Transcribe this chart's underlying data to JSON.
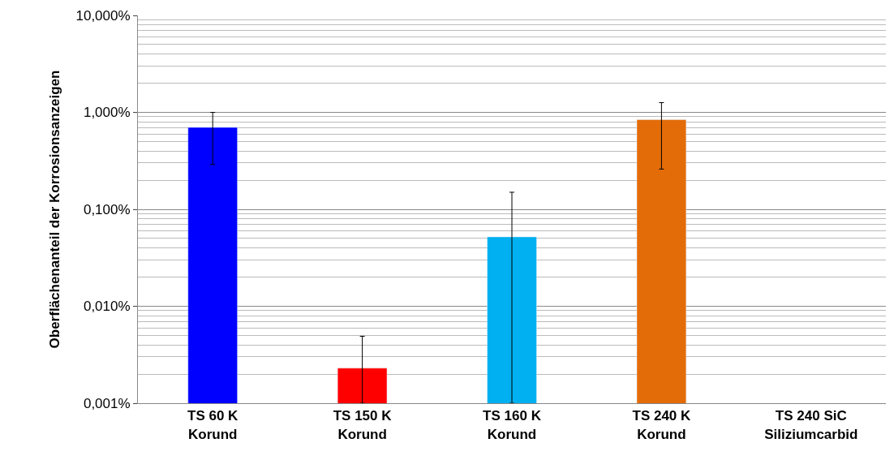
{
  "chart_data": {
    "type": "bar",
    "ylabel": "Oberflächenanteil der Korrosionsanzeigen",
    "categories": [
      "TS 60 K\nKorund",
      "TS 150 K\nKorund",
      "TS 160 K\nKorund",
      "TS 240 K\nKorund",
      "TS 240 SiC\nSiliziumcarbid"
    ],
    "values": [
      0.7,
      0.0023,
      0.052,
      0.84,
      null
    ],
    "colors": [
      "#0000ff",
      "#ff0000",
      "#00b0f0",
      "#e36c09",
      null
    ],
    "errors": [
      [
        0.29,
        1.0
      ],
      [
        0.001,
        0.0049
      ],
      [
        0.001,
        0.15
      ],
      [
        0.26,
        1.26
      ],
      null
    ],
    "log": "y",
    "ylim": [
      0.001,
      10
    ],
    "yticks": [
      {
        "value": 0.001,
        "label": "0,001%"
      },
      {
        "value": 0.01,
        "label": "0,010%"
      },
      {
        "value": 0.1,
        "label": "0,100%"
      },
      {
        "value": 1,
        "label": "1,000%"
      },
      {
        "value": 10,
        "label": "10,000%"
      }
    ],
    "grid": "y"
  }
}
